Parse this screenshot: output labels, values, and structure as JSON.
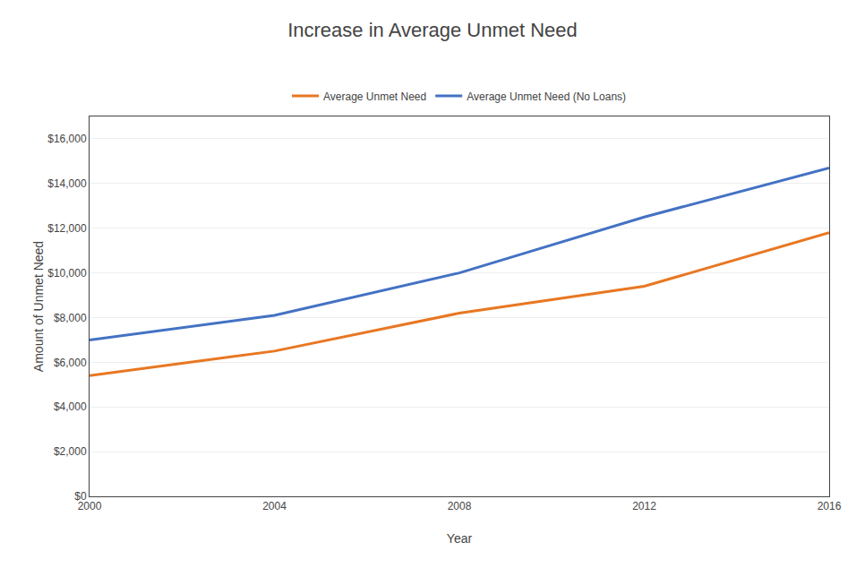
{
  "chart_data": {
    "type": "line",
    "title": "Increase in Average Unmet Need",
    "xlabel": "Year",
    "ylabel": "Amount of Unmet Need",
    "x": [
      2000,
      2004,
      2008,
      2012,
      2016
    ],
    "series": [
      {
        "name": "Average Unmet Need",
        "color": "#E87722",
        "values": [
          5400,
          6500,
          8200,
          9400,
          11800
        ]
      },
      {
        "name": "Average Unmet Need (No Loans)",
        "color": "#4472C4",
        "values": [
          7000,
          8100,
          10000,
          12500,
          14700
        ]
      }
    ],
    "xlim": [
      2000,
      2016
    ],
    "xticks": [
      2000,
      2004,
      2008,
      2012,
      2016
    ],
    "ylim": [
      0,
      17000
    ],
    "yticks": [
      {
        "value": 0,
        "label": "$0"
      },
      {
        "value": 2000,
        "label": "$2,000"
      },
      {
        "value": 4000,
        "label": "$4,000"
      },
      {
        "value": 6000,
        "label": "$6,000"
      },
      {
        "value": 8000,
        "label": "$8,000"
      },
      {
        "value": 10000,
        "label": "$10,000"
      },
      {
        "value": 12000,
        "label": "$12,000"
      },
      {
        "value": 14000,
        "label": "$14,000"
      },
      {
        "value": 16000,
        "label": "$16,000"
      }
    ],
    "grid": true,
    "legend": "top"
  }
}
